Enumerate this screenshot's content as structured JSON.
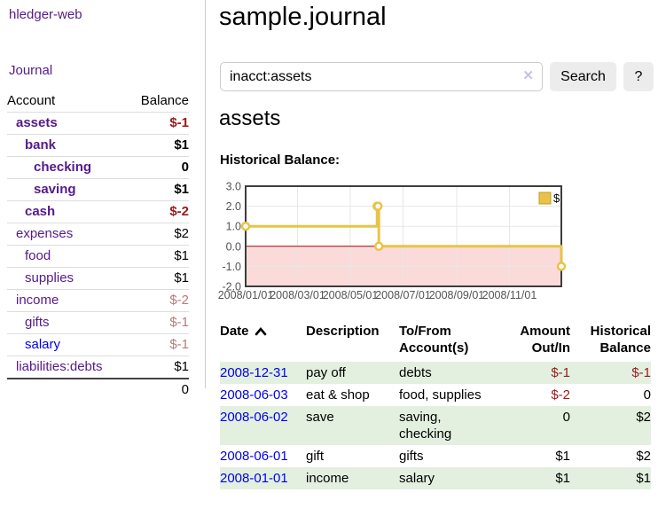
{
  "brand": "hledger-web",
  "sidebar": {
    "journal_link": "Journal",
    "accounts_table": {
      "account_header": "Account",
      "balance_header": "Balance",
      "rows": [
        {
          "account": "assets",
          "balance": "$-1",
          "indent": 1,
          "bold": true,
          "balance_class": "neg-strong",
          "link_color": "purple"
        },
        {
          "account": "bank",
          "balance": "$1",
          "indent": 2,
          "bold": true,
          "balance_class": "pos",
          "link_color": "purple"
        },
        {
          "account": "checking",
          "balance": "0",
          "indent": 3,
          "bold": true,
          "balance_class": "pos",
          "link_color": "purple"
        },
        {
          "account": "saving",
          "balance": "$1",
          "indent": 3,
          "bold": true,
          "balance_class": "pos",
          "link_color": "purple"
        },
        {
          "account": "cash",
          "balance": "$-2",
          "indent": 2,
          "bold": true,
          "balance_class": "neg-strong",
          "link_color": "purple"
        },
        {
          "account": "expenses",
          "balance": "$2",
          "indent": 1,
          "bold": false,
          "balance_class": "pos",
          "link_color": "purple"
        },
        {
          "account": "food",
          "balance": "$1",
          "indent": 2,
          "bold": false,
          "balance_class": "pos",
          "link_color": "purple"
        },
        {
          "account": "supplies",
          "balance": "$1",
          "indent": 2,
          "bold": false,
          "balance_class": "pos",
          "link_color": "purple"
        },
        {
          "account": "income",
          "balance": "$-2",
          "indent": 1,
          "bold": false,
          "balance_class": "neg-soft",
          "link_color": "purple"
        },
        {
          "account": "gifts",
          "balance": "$-1",
          "indent": 2,
          "bold": false,
          "balance_class": "neg-soft",
          "link_color": "purple"
        },
        {
          "account": "salary",
          "balance": "$-1",
          "indent": 2,
          "bold": false,
          "balance_class": "neg-soft",
          "link_color": "blue"
        },
        {
          "account": "liabilities:debts",
          "balance": "$1",
          "indent": 1,
          "bold": false,
          "balance_class": "pos",
          "link_color": "purple"
        }
      ],
      "total": "0"
    }
  },
  "header": {
    "title": "sample.journal"
  },
  "search": {
    "value": "inacct:assets",
    "clear_icon": "✕",
    "search_label": "Search",
    "help_label": "?"
  },
  "account_page": {
    "title": "assets",
    "chart_label": "Historical Balance:"
  },
  "chart_data": {
    "type": "line",
    "style": "step",
    "series": [
      {
        "name": "$",
        "points": [
          {
            "date": "2008-01-01",
            "value": 1.0
          },
          {
            "date": "2008-06-01",
            "value": 2.0
          },
          {
            "date": "2008-06-02",
            "value": 2.0
          },
          {
            "date": "2008-06-03",
            "value": 0.0
          },
          {
            "date": "2008-12-31",
            "value": -1.0
          }
        ]
      }
    ],
    "x_range": [
      "2008-01-01",
      "2008-12-31"
    ],
    "x_ticks": [
      "2008/01/01",
      "2008/03/01",
      "2008/05/01",
      "2008/07/01",
      "2008/09/01",
      "2008/11/01"
    ],
    "y_ticks": [
      "3.0",
      "2.0",
      "1.0",
      "0.0",
      "-1.0",
      "-2.0"
    ],
    "y_range": [
      -2.0,
      3.0
    ],
    "legend": {
      "label": "$",
      "position": "top-right"
    },
    "grid": true,
    "negative_region_shaded": true
  },
  "register_table": {
    "columns": [
      {
        "label": "Date",
        "sorted": "asc",
        "align": "left"
      },
      {
        "label": "Description",
        "align": "left"
      },
      {
        "label": "To/From Account(s)",
        "align": "left"
      },
      {
        "label": "Amount Out/In",
        "align": "right"
      },
      {
        "label": "Historical Balance",
        "align": "right"
      }
    ],
    "rows": [
      {
        "date": "2008-12-31",
        "description": "pay off",
        "accounts": "debts",
        "amount": "$-1",
        "balance": "$-1"
      },
      {
        "date": "2008-06-03",
        "description": "eat & shop",
        "accounts": "food, supplies",
        "amount": "$-2",
        "balance": "0"
      },
      {
        "date": "2008-06-02",
        "description": "save",
        "accounts": "saving, checking",
        "amount": "0",
        "balance": "$2"
      },
      {
        "date": "2008-06-01",
        "description": "gift",
        "accounts": "gifts",
        "amount": "$1",
        "balance": "$2"
      },
      {
        "date": "2008-01-01",
        "description": "income",
        "accounts": "salary",
        "amount": "$1",
        "balance": "$1"
      }
    ]
  },
  "colors": {
    "link_purple": "#551a8b",
    "link_blue": "#0000ee",
    "negative_strong": "#9c1818",
    "negative_soft": "#b87a7a",
    "row_highlight_green": "#e3f0e0",
    "button_gray": "#ececec",
    "chart_border": "#3d3d3d",
    "chart_grid": "#e7e7e7",
    "chart_tick_text": "#545454",
    "chart_line_yellow": "#e9c348",
    "chart_legend_box_border": "#c09c20",
    "chart_negative_fill": "#fbdada",
    "chart_zero_line": "#a40000"
  }
}
